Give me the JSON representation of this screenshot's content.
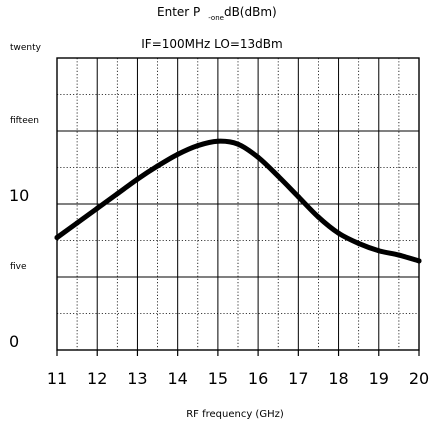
{
  "chart_data": {
    "type": "line",
    "title_main": "Enter P",
    "title_subscript": "-one",
    "title_suffix": "dB(dBm)",
    "subtitle": "IF=100MHz LO=13dBm",
    "xlabel": "RF frequency (GHz)",
    "ylabel": "",
    "xlim": [
      11,
      20
    ],
    "ylim": [
      0,
      20
    ],
    "x_ticks": [
      "11",
      "12",
      "13",
      "14",
      "15",
      "16",
      "17",
      "18",
      "19",
      "20"
    ],
    "y_ticks": [
      {
        "value": 0,
        "label": "0",
        "size": "large"
      },
      {
        "value": 5,
        "label": "five",
        "size": "small"
      },
      {
        "value": 10,
        "label": "10",
        "size": "large"
      },
      {
        "value": 15,
        "label": "fifteen",
        "size": "small"
      },
      {
        "value": 20,
        "label": "twenty",
        "size": "small"
      }
    ],
    "grid": true,
    "series": [
      {
        "x": [
          11,
          11.5,
          12,
          12.5,
          13,
          13.5,
          14,
          14.5,
          15,
          15.5,
          16,
          16.5,
          17,
          17.5,
          18,
          18.5,
          19,
          19.5,
          20
        ],
        "values": [
          7.7,
          8.7,
          9.7,
          10.7,
          11.7,
          12.6,
          13.4,
          14.0,
          14.3,
          14.1,
          13.2,
          11.9,
          10.5,
          9.1,
          8.0,
          7.3,
          6.8,
          6.5,
          6.1
        ],
        "color": "#000000"
      }
    ]
  }
}
